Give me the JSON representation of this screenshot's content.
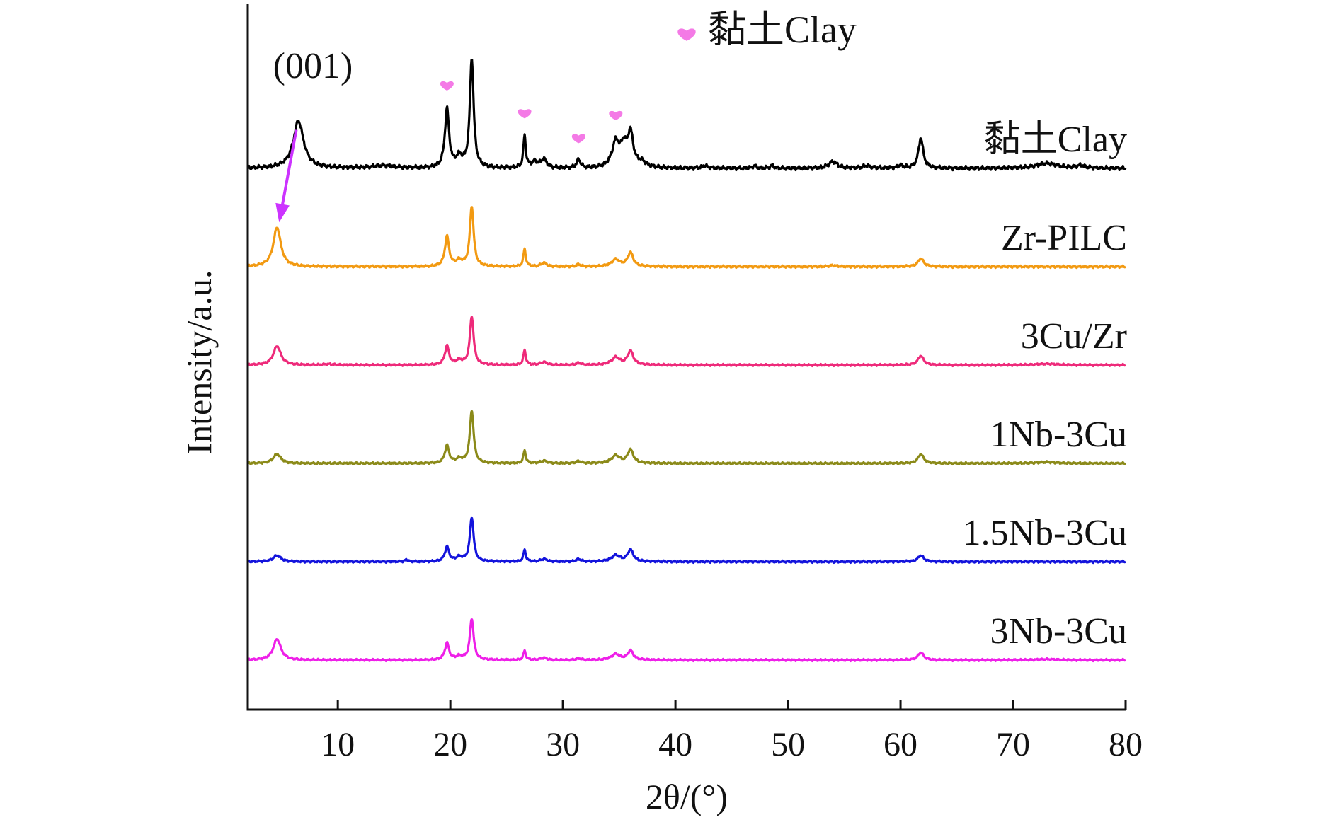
{
  "chart_data": {
    "type": "line",
    "xlabel": "2θ/(°)",
    "ylabel": "Intensity/a.u.",
    "xlim": [
      2,
      80
    ],
    "x_ticks": [
      10,
      20,
      30,
      40,
      50,
      60,
      70,
      80
    ],
    "y_ticks_shown": false,
    "grid": false,
    "legend": {
      "marker": "heart",
      "color": "#f47ae6",
      "label": "黏土Clay",
      "position": "top-center"
    },
    "annotations": [
      {
        "text": "(001)",
        "type": "label",
        "x": 6.5,
        "series": "黏土Clay"
      },
      {
        "type": "arrow",
        "color": "#cc33ff",
        "from": {
          "series": "黏土Clay",
          "x": 6.5
        },
        "to": {
          "series": "Zr-PILC",
          "x": 4.6
        }
      }
    ],
    "clay_marker_peaks": [
      19.7,
      26.6,
      31.4,
      34.7
    ],
    "series": [
      {
        "name": "黏土Clay",
        "color": "#000000",
        "baseline": 0.5,
        "amp": 1.0,
        "peaks": [
          [
            6.5,
            0.56,
            0.55
          ],
          [
            14.0,
            0.03,
            1.2
          ],
          [
            19.7,
            0.7,
            0.22
          ],
          [
            20.8,
            0.12,
            0.35
          ],
          [
            21.9,
            1.3,
            0.2
          ],
          [
            26.6,
            0.38,
            0.13
          ],
          [
            27.5,
            0.07,
            0.35
          ],
          [
            28.3,
            0.1,
            0.3
          ],
          [
            31.4,
            0.1,
            0.2
          ],
          [
            34.7,
            0.3,
            0.4
          ],
          [
            35.4,
            0.22,
            0.3
          ],
          [
            36.0,
            0.4,
            0.3
          ],
          [
            37.0,
            0.06,
            0.5
          ],
          [
            42.6,
            0.03,
            0.3
          ],
          [
            47.0,
            0.03,
            0.2
          ],
          [
            48.6,
            0.03,
            0.2
          ],
          [
            54.0,
            0.08,
            0.45
          ],
          [
            57.0,
            0.03,
            0.4
          ],
          [
            60.0,
            0.03,
            0.3
          ],
          [
            61.8,
            0.36,
            0.25
          ],
          [
            73.0,
            0.06,
            1.1
          ],
          [
            76.0,
            0.03,
            0.5
          ]
        ]
      },
      {
        "name": "Zr-PILC",
        "color": "#f29a12",
        "baseline": 1.01,
        "amp": 0.55,
        "peaks": [
          [
            4.6,
            0.85,
            0.4
          ],
          [
            19.7,
            0.65,
            0.22
          ],
          [
            20.8,
            0.12,
            0.35
          ],
          [
            21.9,
            1.3,
            0.2
          ],
          [
            26.6,
            0.38,
            0.13
          ],
          [
            28.3,
            0.08,
            0.3
          ],
          [
            31.4,
            0.05,
            0.2
          ],
          [
            34.7,
            0.15,
            0.45
          ],
          [
            36.0,
            0.3,
            0.3
          ],
          [
            54.0,
            0.03,
            0.4
          ],
          [
            61.8,
            0.18,
            0.3
          ]
        ]
      },
      {
        "name": "3Cu/Zr",
        "color": "#ee2a7a",
        "baseline": 1.52,
        "amp": 0.5,
        "peaks": [
          [
            4.6,
            0.45,
            0.4
          ],
          [
            9.2,
            0.02,
            0.5
          ],
          [
            19.7,
            0.45,
            0.22
          ],
          [
            20.8,
            0.1,
            0.35
          ],
          [
            21.9,
            1.15,
            0.2
          ],
          [
            26.6,
            0.35,
            0.13
          ],
          [
            28.3,
            0.07,
            0.35
          ],
          [
            31.4,
            0.05,
            0.25
          ],
          [
            34.7,
            0.18,
            0.45
          ],
          [
            36.0,
            0.33,
            0.3
          ],
          [
            61.8,
            0.22,
            0.3
          ],
          [
            73.0,
            0.03,
            1.0
          ]
        ]
      },
      {
        "name": "1Nb-3Cu",
        "color": "#8b8a19",
        "baseline": 2.03,
        "amp": 0.5,
        "peaks": [
          [
            4.6,
            0.22,
            0.4
          ],
          [
            19.7,
            0.42,
            0.22
          ],
          [
            20.8,
            0.1,
            0.35
          ],
          [
            21.9,
            1.25,
            0.2
          ],
          [
            26.6,
            0.3,
            0.13
          ],
          [
            28.3,
            0.06,
            0.35
          ],
          [
            31.4,
            0.05,
            0.25
          ],
          [
            34.7,
            0.18,
            0.45
          ],
          [
            36.0,
            0.32,
            0.3
          ],
          [
            61.8,
            0.22,
            0.3
          ],
          [
            73.0,
            0.03,
            1.0
          ]
        ]
      },
      {
        "name": "1.5Nb-3Cu",
        "color": "#1313dc",
        "baseline": 2.54,
        "amp": 0.5,
        "peaks": [
          [
            4.6,
            0.15,
            0.4
          ],
          [
            16.1,
            0.05,
            0.15
          ],
          [
            19.7,
            0.35,
            0.22
          ],
          [
            20.8,
            0.1,
            0.35
          ],
          [
            21.9,
            1.05,
            0.2
          ],
          [
            26.6,
            0.28,
            0.13
          ],
          [
            28.3,
            0.06,
            0.35
          ],
          [
            31.4,
            0.06,
            0.25
          ],
          [
            34.7,
            0.15,
            0.45
          ],
          [
            36.0,
            0.28,
            0.3
          ],
          [
            61.8,
            0.15,
            0.3
          ]
        ]
      },
      {
        "name": "3Nb-3Cu",
        "color": "#ee1fe8",
        "baseline": 3.05,
        "amp": 0.5,
        "peaks": [
          [
            4.6,
            0.5,
            0.4
          ],
          [
            19.7,
            0.4,
            0.22
          ],
          [
            20.8,
            0.08,
            0.35
          ],
          [
            21.9,
            0.98,
            0.2
          ],
          [
            26.6,
            0.22,
            0.13
          ],
          [
            28.3,
            0.05,
            0.35
          ],
          [
            31.4,
            0.04,
            0.25
          ],
          [
            34.7,
            0.14,
            0.45
          ],
          [
            36.0,
            0.22,
            0.3
          ],
          [
            61.8,
            0.18,
            0.3
          ],
          [
            73.0,
            0.02,
            1.0
          ]
        ]
      }
    ]
  }
}
